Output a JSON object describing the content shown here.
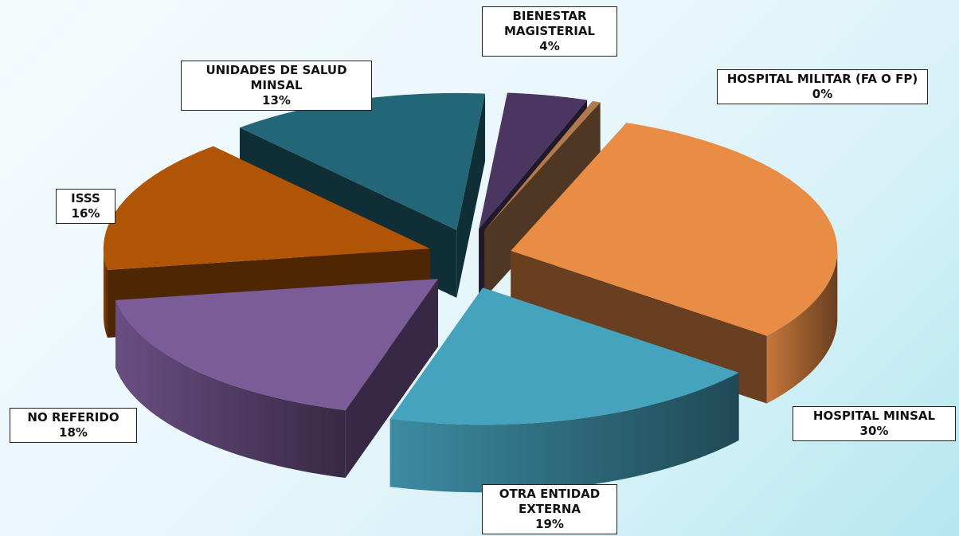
{
  "chart_data": {
    "type": "pie3d",
    "categories": [
      "BIENESTAR MAGISTERIAL",
      "HOSPITAL MILITAR (FA O FP)",
      "HOSPITAL MINSAL",
      "OTRA ENTIDAD EXTERNA",
      "NO REFERIDO",
      "ISSS",
      "UNIDADES DE SALUD MINSAL"
    ],
    "values": [
      4,
      0.4,
      30,
      19,
      18,
      16,
      13
    ],
    "value_labels": [
      "4%",
      "0%",
      "30%",
      "19%",
      "18%",
      "16%",
      "13%"
    ],
    "colors": [
      "#4a3660",
      "#b07a4d",
      "#e98c45",
      "#46a3bd",
      "#7b5c99",
      "#b05405",
      "#236677"
    ]
  }
}
